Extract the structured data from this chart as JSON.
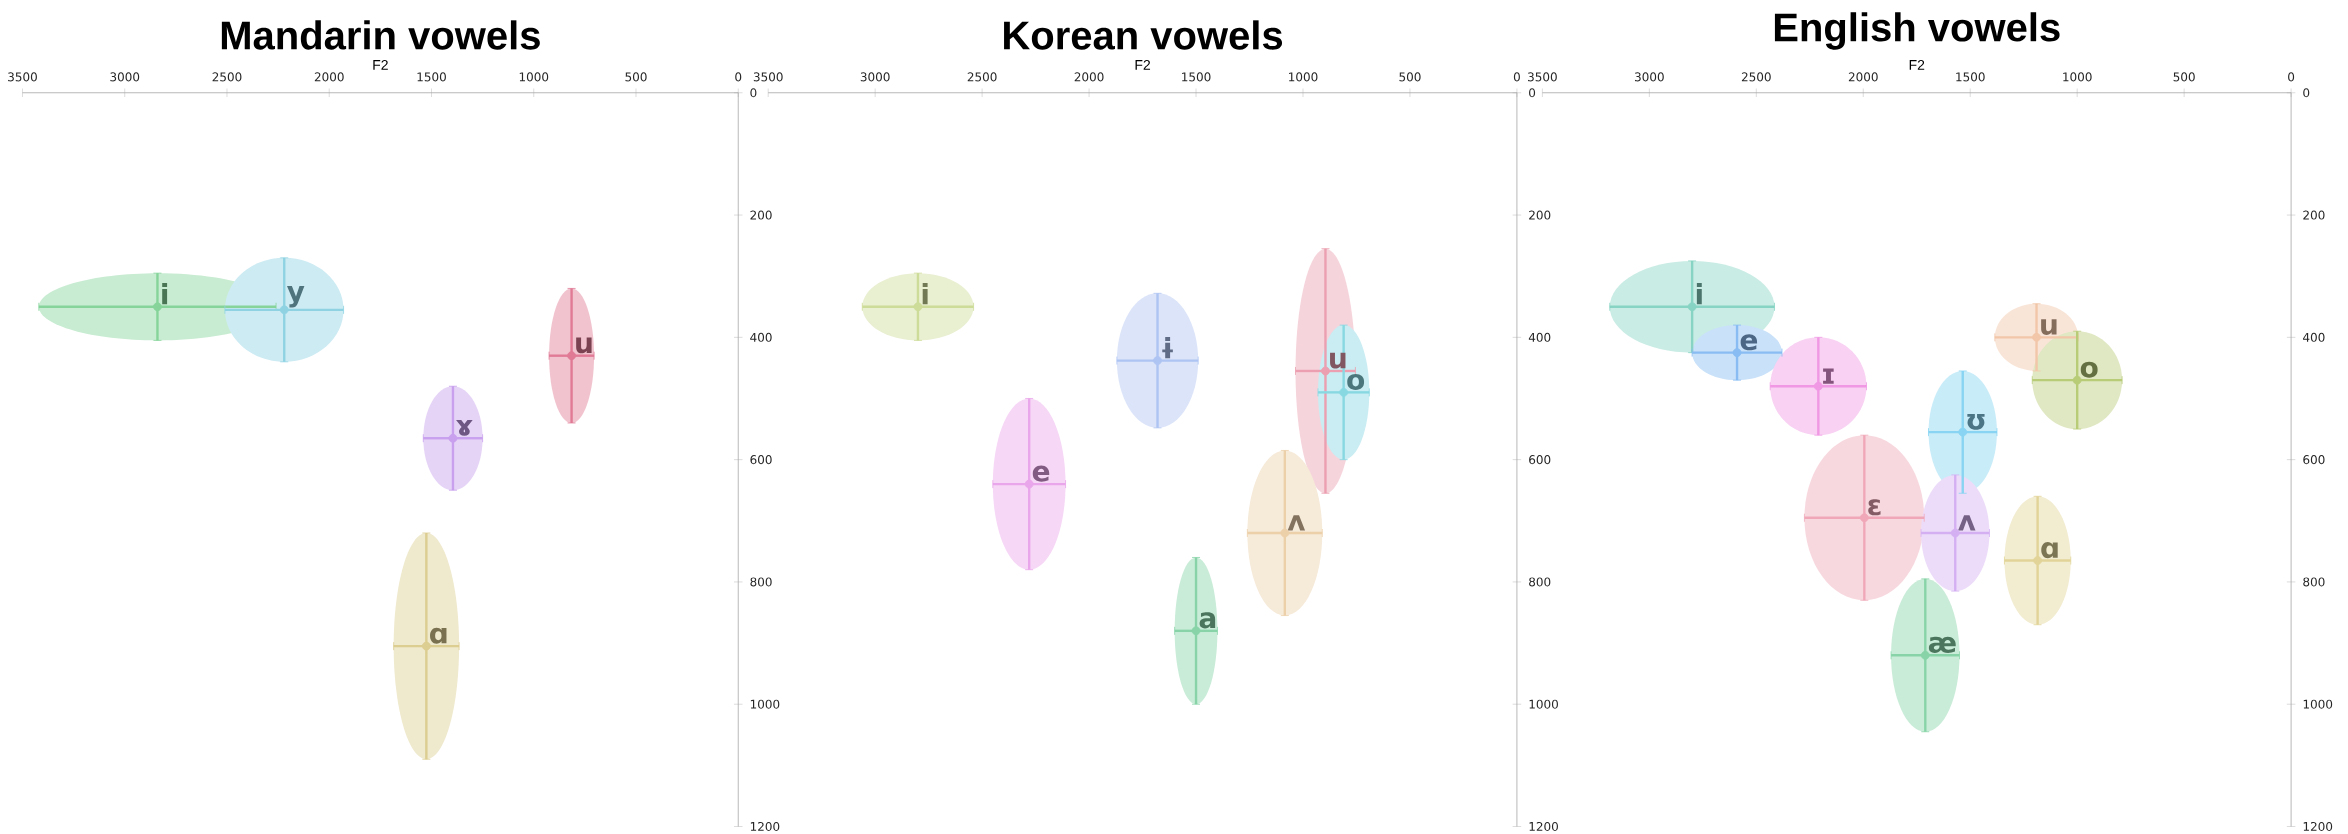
{
  "chart_data": [
    {
      "type": "scatter",
      "title": "Mandarin vowels",
      "xlabel": "F2",
      "xlim": [
        3500,
        0
      ],
      "xticks": [
        3500,
        3000,
        2500,
        2000,
        1500,
        1000,
        500,
        0
      ],
      "ylim": [
        1200,
        0
      ],
      "yticks": [
        0,
        200,
        400,
        600,
        800,
        1000,
        1200
      ],
      "series": [
        {
          "name": "i",
          "color": "#86d49a",
          "x": [
            2840
          ],
          "values": [
            350
          ],
          "xerrors": [
            580
          ],
          "errors": [
            55
          ]
        },
        {
          "name": "y",
          "color": "#8fd3e3",
          "x": [
            2220
          ],
          "values": [
            355
          ],
          "xerrors": [
            290
          ],
          "errors": [
            85
          ]
        },
        {
          "name": "u",
          "color": "#e07a95",
          "x": [
            815
          ],
          "values": [
            430
          ],
          "xerrors": [
            110
          ],
          "errors": [
            110
          ]
        },
        {
          "name": "ɤ",
          "color": "#c8a0ee",
          "x": [
            1395
          ],
          "values": [
            565
          ],
          "xerrors": [
            145
          ],
          "errors": [
            85
          ]
        },
        {
          "name": "ɑ",
          "color": "#dccd90",
          "x": [
            1525
          ],
          "values": [
            905
          ],
          "xerrors": [
            160
          ],
          "errors": [
            185
          ]
        }
      ]
    },
    {
      "type": "scatter",
      "title": "Korean vowels",
      "xlabel": "F2",
      "xlim": [
        3500,
        0
      ],
      "xticks": [
        3500,
        3000,
        2500,
        2000,
        1500,
        1000,
        500,
        0
      ],
      "ylim": [
        1200,
        0
      ],
      "yticks": [
        0,
        200,
        400,
        600,
        800,
        1000,
        1200
      ],
      "series": [
        {
          "name": "i",
          "color": "#cddc98",
          "x": [
            2800
          ],
          "values": [
            350
          ],
          "xerrors": [
            260
          ],
          "errors": [
            55
          ]
        },
        {
          "name": "ɨ",
          "color": "#aec4f2",
          "x": [
            1680
          ],
          "values": [
            438
          ],
          "xerrors": [
            190
          ],
          "errors": [
            110
          ]
        },
        {
          "name": "e",
          "color": "#eaa6ea",
          "x": [
            2280
          ],
          "values": [
            640
          ],
          "xerrors": [
            170
          ],
          "errors": [
            140
          ]
        },
        {
          "name": "u",
          "color": "#eb9fb0",
          "x": [
            895
          ],
          "values": [
            455
          ],
          "xerrors": [
            140
          ],
          "errors": [
            200
          ]
        },
        {
          "name": "o",
          "color": "#88d8e2",
          "x": [
            810
          ],
          "values": [
            490
          ],
          "xerrors": [
            120
          ],
          "errors": [
            110
          ]
        },
        {
          "name": "ʌ",
          "color": "#ecd0aa",
          "x": [
            1085
          ],
          "values": [
            720
          ],
          "xerrors": [
            175
          ],
          "errors": [
            135
          ]
        },
        {
          "name": "a",
          "color": "#88d4a8",
          "x": [
            1500
          ],
          "values": [
            880
          ],
          "xerrors": [
            100
          ],
          "errors": [
            120
          ]
        }
      ]
    },
    {
      "type": "scatter",
      "title": "English vowels",
      "xlabel": "F2",
      "xlim": [
        3500,
        0
      ],
      "xticks": [
        3500,
        3000,
        2500,
        2000,
        1500,
        1000,
        500,
        0
      ],
      "ylim": [
        1200,
        0
      ],
      "yticks": [
        0,
        200,
        400,
        600,
        800,
        1000,
        1200
      ],
      "series": [
        {
          "name": "i",
          "color": "#88d4c4",
          "x": [
            2800
          ],
          "values": [
            350
          ],
          "xerrors": [
            385
          ],
          "errors": [
            75
          ]
        },
        {
          "name": "e",
          "color": "#88bcf2",
          "x": [
            2590
          ],
          "values": [
            425
          ],
          "xerrors": [
            210
          ],
          "errors": [
            45
          ]
        },
        {
          "name": "ɪ",
          "color": "#f098e4",
          "x": [
            2210
          ],
          "values": [
            480
          ],
          "xerrors": [
            225
          ],
          "errors": [
            80
          ]
        },
        {
          "name": "ʊ",
          "color": "#88d4f2",
          "x": [
            1535
          ],
          "values": [
            555
          ],
          "xerrors": [
            160
          ],
          "errors": [
            100
          ]
        },
        {
          "name": "u",
          "color": "#f2c6a8",
          "x": [
            1190
          ],
          "values": [
            400
          ],
          "xerrors": [
            195
          ],
          "errors": [
            55
          ]
        },
        {
          "name": "o",
          "color": "#b8cc78",
          "x": [
            1000
          ],
          "values": [
            470
          ],
          "xerrors": [
            210
          ],
          "errors": [
            80
          ]
        },
        {
          "name": "ɛ",
          "color": "#f0a8b8",
          "x": [
            1995
          ],
          "values": [
            695
          ],
          "xerrors": [
            280
          ],
          "errors": [
            135
          ]
        },
        {
          "name": "ʌ",
          "color": "#d4b0f2",
          "x": [
            1570
          ],
          "values": [
            720
          ],
          "xerrors": [
            160
          ],
          "errors": [
            95
          ]
        },
        {
          "name": "ɑ",
          "color": "#e2d498",
          "x": [
            1185
          ],
          "values": [
            765
          ],
          "xerrors": [
            155
          ],
          "errors": [
            105
          ]
        },
        {
          "name": "æ",
          "color": "#88d4a8",
          "x": [
            1710
          ],
          "values": [
            920
          ],
          "xerrors": [
            160
          ],
          "errors": [
            125
          ]
        }
      ]
    }
  ]
}
